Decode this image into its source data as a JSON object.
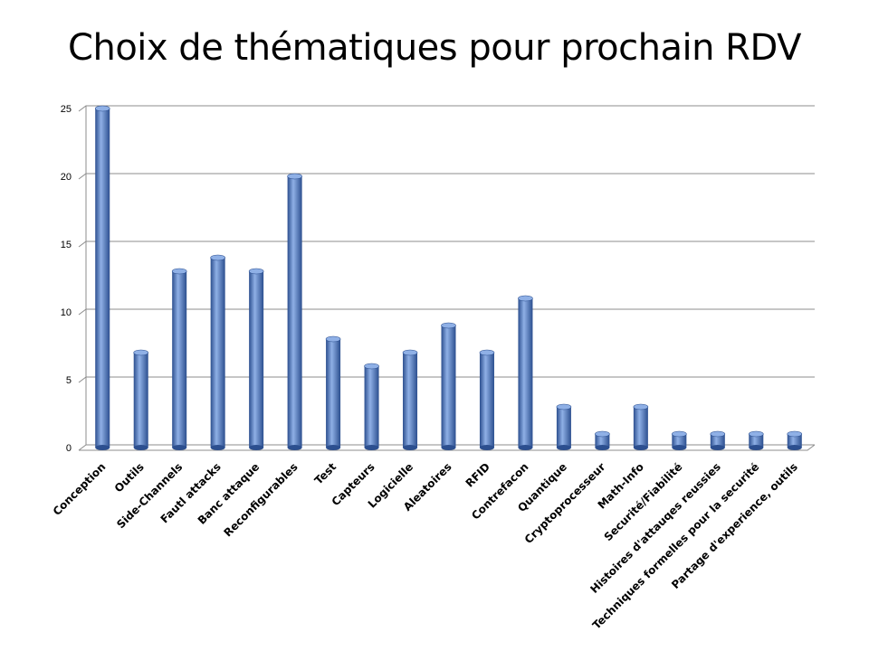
{
  "title": "Choix de thématiques pour prochain RDV",
  "colors": {
    "bar": "#4472C4",
    "bar_dark": "#2c4f8f",
    "bar_light": "#8fb0e6",
    "grid": "#8c8c8c"
  },
  "chart_data": {
    "type": "bar",
    "title": "Choix de thématiques pour prochain RDV",
    "xlabel": "",
    "ylabel": "",
    "ylim": [
      0,
      25
    ],
    "yticks": [
      0,
      5,
      10,
      15,
      20,
      25
    ],
    "grid": true,
    "legend": "none",
    "categories": [
      "Conception",
      "Outils",
      "Side-Channels",
      "Fautl attacks",
      "Banc attaque",
      "Reconfigurables",
      "Test",
      "Capteurs",
      "Logicielle",
      "Aleatoires",
      "RFID",
      "Contrefacon",
      "Quantique",
      "Cryptoprocesseur",
      "Math-Info",
      "Securité/Fiabilité",
      "Histoires d'attauqes reussies",
      "Techniques formelles pour la securité",
      "Partage d'experience, outils"
    ],
    "values": [
      25,
      7,
      13,
      14,
      13,
      20,
      8,
      6,
      7,
      9,
      7,
      11,
      3,
      1,
      3,
      1,
      1,
      1,
      1
    ]
  }
}
